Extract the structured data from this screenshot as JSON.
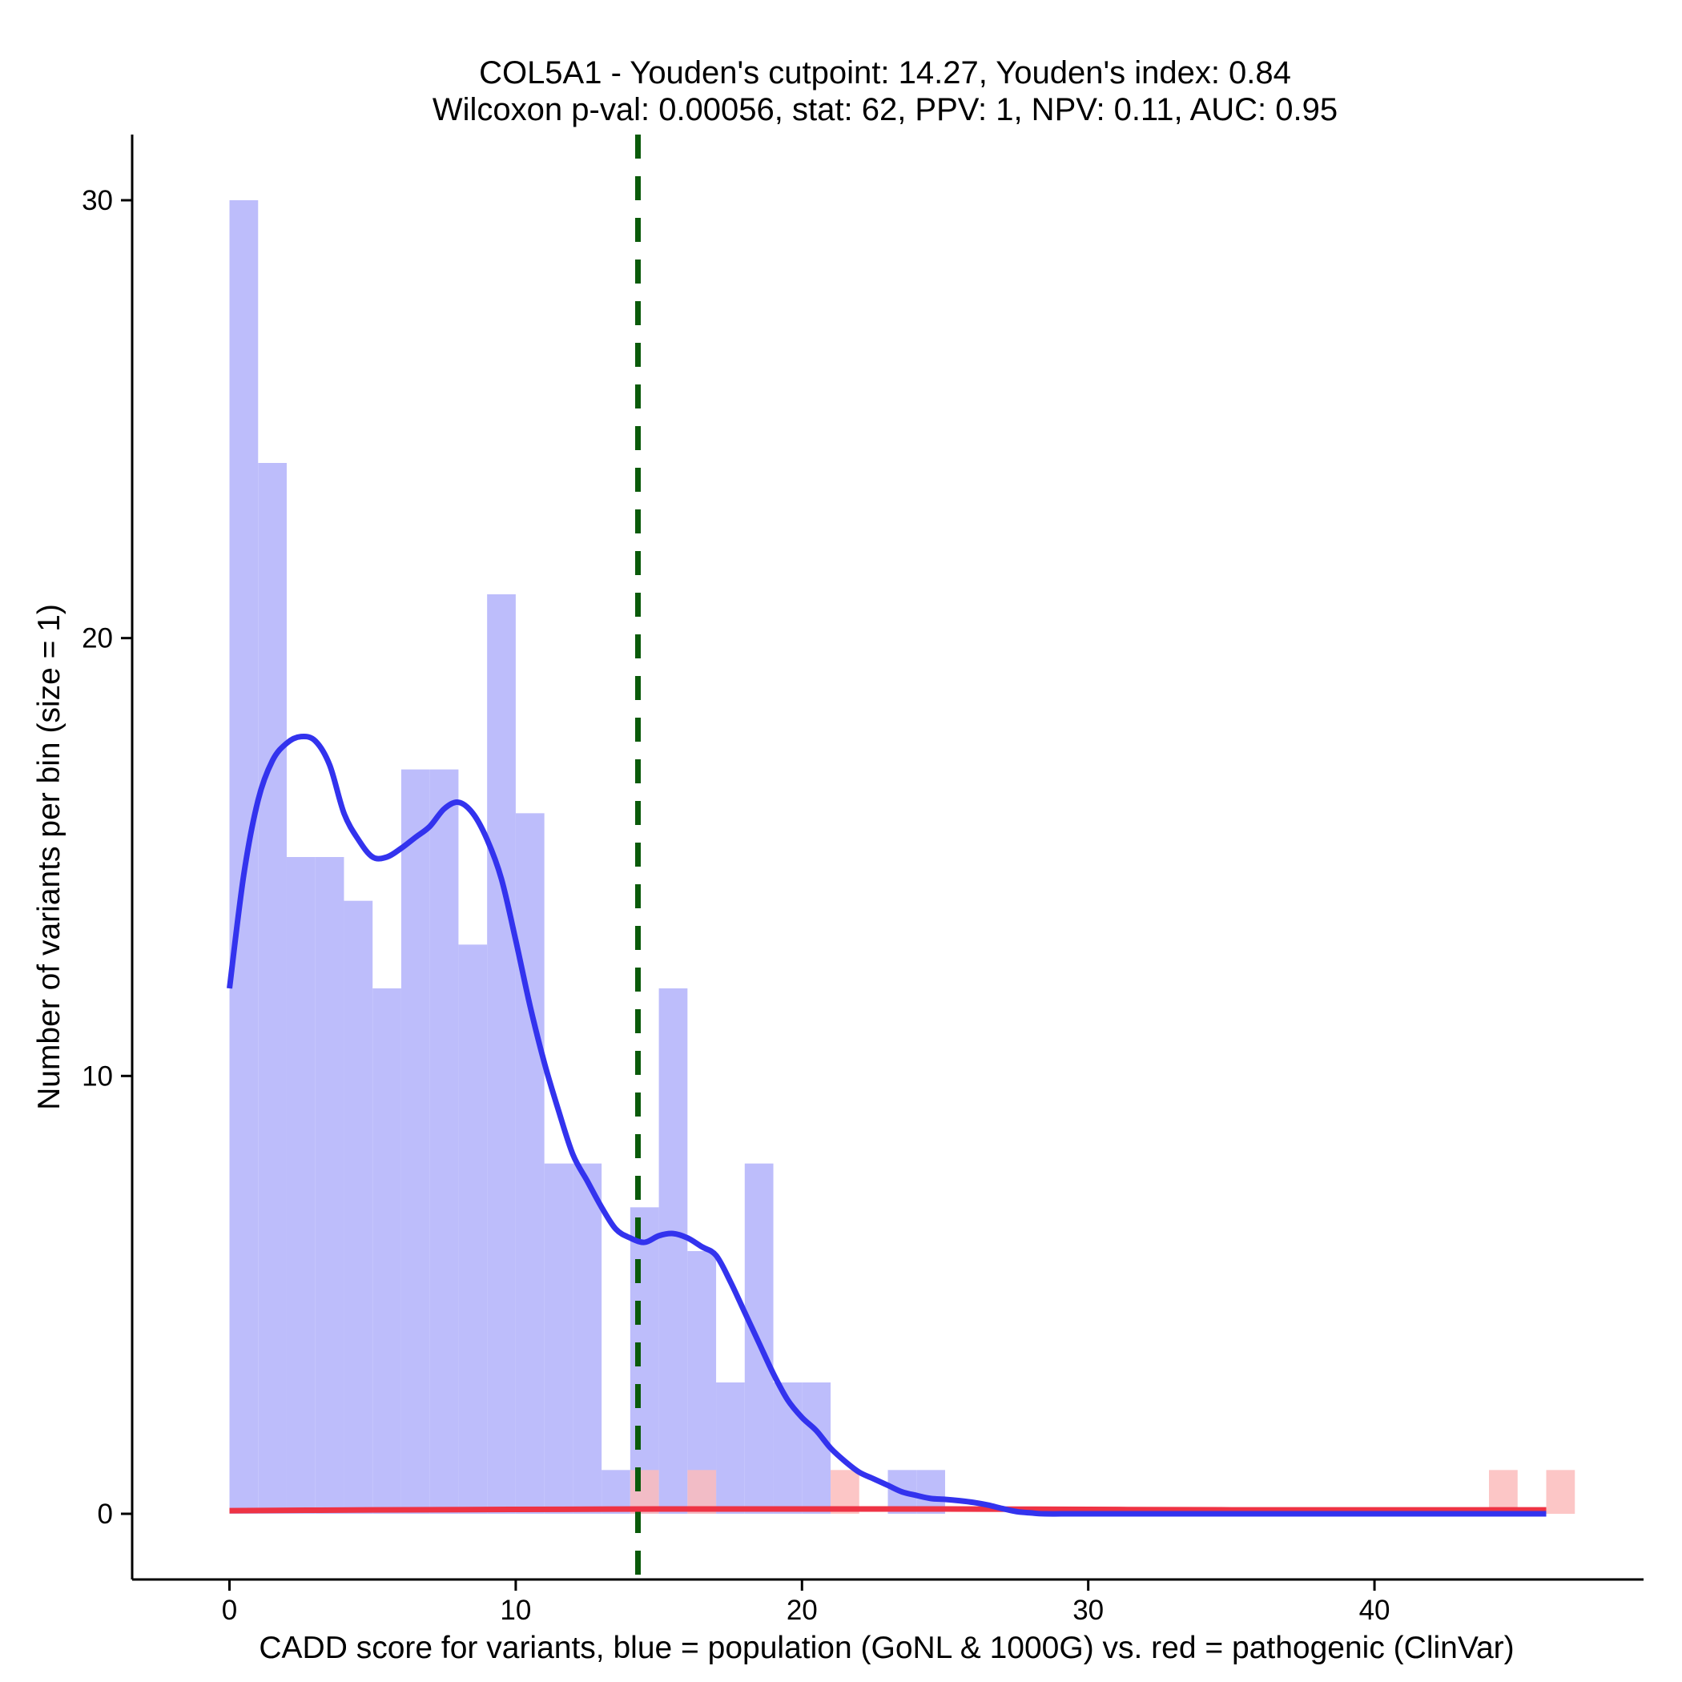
{
  "chart_data": {
    "type": "histogram",
    "title_line1": "COL5A1 - Youden's cutpoint: 14.27, Youden's index: 0.84",
    "title_line2": "Wilcoxon p-val: 0.00056, stat: 62, PPV: 1, NPV: 0.11, AUC: 0.95",
    "xlabel": "CADD score for variants, blue = population (GoNL & 1000G) vs. red = pathogenic (ClinVar)",
    "ylabel": "Number of variants per bin (size = 1)",
    "xlim": [
      -3.4,
      49.4
    ],
    "ylim": [
      -1.5,
      31.5
    ],
    "x_ticks": [
      0,
      10,
      20,
      30,
      40
    ],
    "x_tick_labels": [
      "0",
      "10",
      "20",
      "30",
      "40"
    ],
    "y_ticks": [
      0,
      10,
      20,
      30
    ],
    "y_tick_labels": [
      "0",
      "10",
      "20",
      "30"
    ],
    "cutpoint": 14.27,
    "colors": {
      "population_fill": "#bdbdfb",
      "population_line": "#3333ee",
      "pathogenic_fill": "#fcbcbc",
      "pathogenic_line": "#ee3344",
      "cutpoint_line": "#0a5a0a"
    },
    "series": [
      {
        "name": "population (GoNL & 1000G)",
        "bin_width": 1,
        "bins": [
          {
            "x0": 0,
            "count": 30
          },
          {
            "x0": 1,
            "count": 24
          },
          {
            "x0": 2,
            "count": 15
          },
          {
            "x0": 3,
            "count": 15
          },
          {
            "x0": 4,
            "count": 14
          },
          {
            "x0": 5,
            "count": 12
          },
          {
            "x0": 6,
            "count": 17
          },
          {
            "x0": 7,
            "count": 17
          },
          {
            "x0": 8,
            "count": 13
          },
          {
            "x0": 9,
            "count": 21
          },
          {
            "x0": 10,
            "count": 16
          },
          {
            "x0": 11,
            "count": 8
          },
          {
            "x0": 12,
            "count": 8
          },
          {
            "x0": 13,
            "count": 1
          },
          {
            "x0": 14,
            "count": 7
          },
          {
            "x0": 15,
            "count": 12
          },
          {
            "x0": 16,
            "count": 6
          },
          {
            "x0": 17,
            "count": 3
          },
          {
            "x0": 18,
            "count": 8
          },
          {
            "x0": 19,
            "count": 3
          },
          {
            "x0": 20,
            "count": 3
          },
          {
            "x0": 23,
            "count": 1
          },
          {
            "x0": 24,
            "count": 1
          }
        ],
        "density": [
          [
            0.0,
            12.0
          ],
          [
            0.5,
            14.6
          ],
          [
            1.0,
            16.3
          ],
          [
            1.5,
            17.2
          ],
          [
            2.0,
            17.6
          ],
          [
            2.5,
            17.75
          ],
          [
            3.0,
            17.65
          ],
          [
            3.5,
            17.1
          ],
          [
            4.0,
            16.0
          ],
          [
            4.5,
            15.4
          ],
          [
            5.0,
            15.0
          ],
          [
            5.5,
            15.0
          ],
          [
            6.0,
            15.2
          ],
          [
            6.5,
            15.45
          ],
          [
            7.0,
            15.7
          ],
          [
            7.5,
            16.1
          ],
          [
            8.0,
            16.25
          ],
          [
            8.5,
            16.0
          ],
          [
            9.0,
            15.4
          ],
          [
            9.5,
            14.5
          ],
          [
            10.0,
            13.1
          ],
          [
            10.5,
            11.6
          ],
          [
            11.0,
            10.3
          ],
          [
            11.5,
            9.2
          ],
          [
            12.0,
            8.2
          ],
          [
            12.5,
            7.6
          ],
          [
            13.0,
            7.0
          ],
          [
            13.5,
            6.5
          ],
          [
            14.0,
            6.3
          ],
          [
            14.5,
            6.2
          ],
          [
            15.0,
            6.35
          ],
          [
            15.5,
            6.4
          ],
          [
            16.0,
            6.3
          ],
          [
            16.5,
            6.1
          ],
          [
            17.0,
            5.9
          ],
          [
            17.5,
            5.3
          ],
          [
            18.0,
            4.6
          ],
          [
            18.5,
            3.9
          ],
          [
            19.0,
            3.2
          ],
          [
            19.5,
            2.6
          ],
          [
            20.0,
            2.2
          ],
          [
            20.5,
            1.9
          ],
          [
            21.0,
            1.5
          ],
          [
            21.5,
            1.2
          ],
          [
            22.0,
            0.95
          ],
          [
            22.5,
            0.8
          ],
          [
            23.0,
            0.65
          ],
          [
            23.5,
            0.5
          ],
          [
            24.0,
            0.42
          ],
          [
            24.5,
            0.35
          ],
          [
            25.0,
            0.33
          ],
          [
            25.5,
            0.3
          ],
          [
            26.0,
            0.26
          ],
          [
            26.5,
            0.2
          ],
          [
            27.0,
            0.12
          ],
          [
            27.5,
            0.05
          ],
          [
            28.0,
            0.02
          ],
          [
            28.5,
            0.0
          ],
          [
            30.0,
            0.0
          ],
          [
            35.0,
            0.0
          ],
          [
            40.0,
            0.0
          ],
          [
            46.0,
            0.0
          ]
        ]
      },
      {
        "name": "pathogenic (ClinVar)",
        "bin_width": 1,
        "bins": [
          {
            "x0": 14,
            "count": 1
          },
          {
            "x0": 16,
            "count": 1
          },
          {
            "x0": 21,
            "count": 1
          },
          {
            "x0": 44,
            "count": 1
          },
          {
            "x0": 46,
            "count": 1
          }
        ],
        "density": [
          [
            0.0,
            0.07
          ],
          [
            5.0,
            0.09
          ],
          [
            10.0,
            0.1
          ],
          [
            15.0,
            0.11
          ],
          [
            20.0,
            0.11
          ],
          [
            25.0,
            0.11
          ],
          [
            30.0,
            0.1
          ],
          [
            35.0,
            0.09
          ],
          [
            40.0,
            0.09
          ],
          [
            46.0,
            0.09
          ]
        ]
      }
    ]
  }
}
